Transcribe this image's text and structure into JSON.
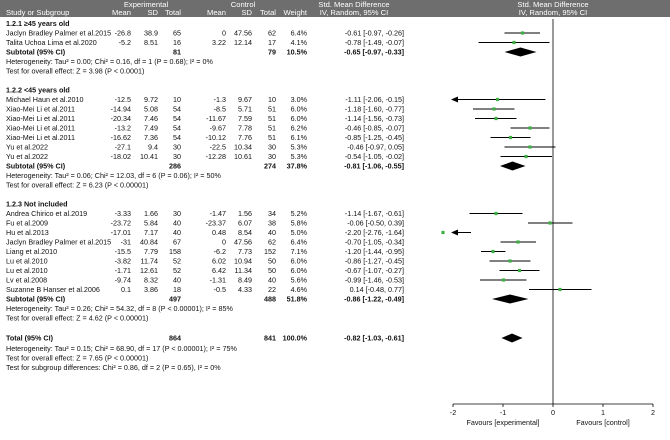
{
  "chart_data": {
    "type": "forest",
    "headers": {
      "study": "Study or Subgroup",
      "experimental": "Experimental",
      "control": "Control",
      "mean": "Mean",
      "sd": "SD",
      "total": "Total",
      "weight": "Weight",
      "smd_text": "Std. Mean Difference",
      "smd_text_sub": "IV, Random, 95% CI",
      "smd_plot": "Std. Mean Difference",
      "smd_plot_sub": "IV, Random, 95% CI"
    },
    "xlim": [
      -2,
      2
    ],
    "ticks": [
      "-2",
      "-1",
      "0",
      "1",
      "2"
    ],
    "favours_left": "Favours [experimental]",
    "favours_right": "Favours [control]",
    "subgroups": [
      {
        "title": "1.2.1 ≥45 years old",
        "studies": [
          {
            "name": "Jaclyn Bradley Palmer et al.2015",
            "e_mean": "-26.8",
            "e_sd": "38.9",
            "e_n": "65",
            "c_mean": "0",
            "c_sd": "47.56",
            "c_n": "62",
            "weight": "6.4%",
            "ci": "-0.61 [-0.97, -0.26]",
            "est": -0.61,
            "lo": -0.97,
            "hi": -0.26
          },
          {
            "name": "Talita Uchoa Lima et al.2020",
            "e_mean": "-5.2",
            "e_sd": "8.51",
            "e_n": "16",
            "c_mean": "3.22",
            "c_sd": "12.14",
            "c_n": "17",
            "weight": "4.1%",
            "ci": "-0.78 [-1.49, -0.07]",
            "est": -0.78,
            "lo": -1.49,
            "hi": -0.07
          }
        ],
        "subtotal": {
          "label": "Subtotal (95% CI)",
          "e_n": "81",
          "c_n": "79",
          "weight": "10.5%",
          "ci": "-0.65 [-0.97, -0.33]",
          "est": -0.65,
          "lo": -0.97,
          "hi": -0.33
        },
        "heterogeneity": "Heterogeneity: Tau² = 0.00; Chi² = 0.16, df = 1 (P = 0.68); I² = 0%",
        "overall": "Test for overall effect: Z = 3.98 (P < 0.0001)"
      },
      {
        "title": "1.2.2 <45 years old",
        "studies": [
          {
            "name": "Michael Haun et al.2010",
            "e_mean": "-12.5",
            "e_sd": "9.72",
            "e_n": "10",
            "c_mean": "-1.3",
            "c_sd": "9.67",
            "c_n": "10",
            "weight": "3.0%",
            "ci": "-1.11 [-2.06, -0.15]",
            "est": -1.11,
            "lo": -2.06,
            "hi": -0.15
          },
          {
            "name": "Xiao-Mei Li et al.2011",
            "e_mean": "-14.94",
            "e_sd": "5.08",
            "e_n": "54",
            "c_mean": "-8.5",
            "c_sd": "5.71",
            "c_n": "51",
            "weight": "6.0%",
            "ci": "-1.18 [-1.60, -0.77]",
            "est": -1.18,
            "lo": -1.6,
            "hi": -0.77
          },
          {
            "name": "Xiao-Mei Li et al.2011",
            "e_mean": "-20.34",
            "e_sd": "7.46",
            "e_n": "54",
            "c_mean": "-11.67",
            "c_sd": "7.59",
            "c_n": "51",
            "weight": "6.0%",
            "ci": "-1.14 [-1.56, -0.73]",
            "est": -1.14,
            "lo": -1.56,
            "hi": -0.73
          },
          {
            "name": "Xiao-Mei Li et al.2011",
            "e_mean": "-13.2",
            "e_sd": "7.49",
            "e_n": "54",
            "c_mean": "-9.67",
            "c_sd": "7.78",
            "c_n": "51",
            "weight": "6.2%",
            "ci": "-0.46 [-0.85, -0.07]",
            "est": -0.46,
            "lo": -0.85,
            "hi": -0.07
          },
          {
            "name": "Xiao-Mei Li et al.2011",
            "e_mean": "-16.62",
            "e_sd": "7.36",
            "e_n": "54",
            "c_mean": "-10.12",
            "c_sd": "7.76",
            "c_n": "51",
            "weight": "6.1%",
            "ci": "-0.85 [-1.25, -0.45]",
            "est": -0.85,
            "lo": -1.25,
            "hi": -0.45
          },
          {
            "name": "Yu et al.2022",
            "e_mean": "-27.1",
            "e_sd": "9.4",
            "e_n": "30",
            "c_mean": "-22.5",
            "c_sd": "10.34",
            "c_n": "30",
            "weight": "5.3%",
            "ci": "-0.46 [-0.97, 0.05]",
            "est": -0.46,
            "lo": -0.97,
            "hi": 0.05
          },
          {
            "name": "Yu et al.2022",
            "e_mean": "-18.02",
            "e_sd": "10.41",
            "e_n": "30",
            "c_mean": "-12.28",
            "c_sd": "10.61",
            "c_n": "30",
            "weight": "5.3%",
            "ci": "-0.54 [-1.05, -0.02]",
            "est": -0.54,
            "lo": -1.05,
            "hi": -0.02
          }
        ],
        "subtotal": {
          "label": "Subtotal (95% CI)",
          "e_n": "286",
          "c_n": "274",
          "weight": "37.8%",
          "ci": "-0.81 [-1.06, -0.55]",
          "est": -0.81,
          "lo": -1.06,
          "hi": -0.55
        },
        "heterogeneity": "Heterogeneity: Tau² = 0.06; Chi² = 12.03, df = 6 (P = 0.06); I² = 50%",
        "overall": "Test for overall effect: Z = 6.23 (P < 0.00001)"
      },
      {
        "title": "1.2.3 Not included",
        "studies": [
          {
            "name": "Andrea Chirico et al.2019",
            "e_mean": "-3.33",
            "e_sd": "1.66",
            "e_n": "30",
            "c_mean": "-1.47",
            "c_sd": "1.56",
            "c_n": "34",
            "weight": "5.2%",
            "ci": "-1.14 [-1.67, -0.61]",
            "est": -1.14,
            "lo": -1.67,
            "hi": -0.61
          },
          {
            "name": "Fu et al.2009",
            "e_mean": "-23.72",
            "e_sd": "5.84",
            "e_n": "40",
            "c_mean": "-23.37",
            "c_sd": "6.07",
            "c_n": "38",
            "weight": "5.8%",
            "ci": "-0.06 [-0.50, 0.39]",
            "est": -0.06,
            "lo": -0.5,
            "hi": 0.39
          },
          {
            "name": "Hu et al.2013",
            "e_mean": "-17.01",
            "e_sd": "7.17",
            "e_n": "40",
            "c_mean": "0.48",
            "c_sd": "8.54",
            "c_n": "40",
            "weight": "5.0%",
            "ci": "-2.20 [-2.76, -1.64]",
            "est": -2.2,
            "lo": -2.76,
            "hi": -1.64
          },
          {
            "name": "Jaclyn Bradley Palmer et al.2015",
            "e_mean": "-31",
            "e_sd": "40.84",
            "e_n": "67",
            "c_mean": "0",
            "c_sd": "47.56",
            "c_n": "62",
            "weight": "6.4%",
            "ci": "-0.70 [-1.05, -0.34]",
            "est": -0.7,
            "lo": -1.05,
            "hi": -0.34
          },
          {
            "name": "Liang et al.2010",
            "e_mean": "-15.5",
            "e_sd": "7.79",
            "e_n": "158",
            "c_mean": "-6.2",
            "c_sd": "7.73",
            "c_n": "152",
            "weight": "7.1%",
            "ci": "-1.20 [-1.44, -0.95]",
            "est": -1.2,
            "lo": -1.44,
            "hi": -0.95
          },
          {
            "name": "Lu et al.2010",
            "e_mean": "-3.82",
            "e_sd": "11.74",
            "e_n": "52",
            "c_mean": "6.02",
            "c_sd": "10.94",
            "c_n": "50",
            "weight": "6.0%",
            "ci": "-0.86 [-1.27, -0.45]",
            "est": -0.86,
            "lo": -1.27,
            "hi": -0.45
          },
          {
            "name": "Lu et al.2010",
            "e_mean": "-1.71",
            "e_sd": "12.61",
            "e_n": "52",
            "c_mean": "6.42",
            "c_sd": "11.34",
            "c_n": "50",
            "weight": "6.0%",
            "ci": "-0.67 [-1.07, -0.27]",
            "est": -0.67,
            "lo": -1.07,
            "hi": -0.27
          },
          {
            "name": "Lv et al.2008",
            "e_mean": "-9.74",
            "e_sd": "8.32",
            "e_n": "40",
            "c_mean": "-1.31",
            "c_sd": "8.49",
            "c_n": "40",
            "weight": "5.6%",
            "ci": "-0.99 [-1.46, -0.53]",
            "est": -0.99,
            "lo": -1.46,
            "hi": -0.53
          },
          {
            "name": "Suzanne B Hanser et al.2006",
            "e_mean": "0.1",
            "e_sd": "3.86",
            "e_n": "18",
            "c_mean": "-0.5",
            "c_sd": "4.33",
            "c_n": "22",
            "weight": "4.6%",
            "ci": "0.14 [-0.48, 0.77]",
            "est": 0.14,
            "lo": -0.48,
            "hi": 0.77
          }
        ],
        "subtotal": {
          "label": "Subtotal (95% CI)",
          "e_n": "497",
          "c_n": "488",
          "weight": "51.8%",
          "ci": "-0.86 [-1.22, -0.49]",
          "est": -0.86,
          "lo": -1.22,
          "hi": -0.49
        },
        "heterogeneity": "Heterogeneity: Tau² = 0.26; Chi² = 54.32, df = 8 (P < 0.00001); I² = 85%",
        "overall": "Test for overall effect: Z = 4.62 (P < 0.00001)"
      }
    ],
    "total": {
      "label": "Total (95% CI)",
      "e_n": "864",
      "c_n": "841",
      "weight": "100.0%",
      "ci": "-0.82 [-1.03, -0.61]",
      "est": -0.82,
      "lo": -1.03,
      "hi": -0.61
    },
    "footer": [
      "Heterogeneity: Tau² = 0.15; Chi² = 68.90, df = 17 (P < 0.00001); I² = 75%",
      "Test for overall effect: Z = 7.65 (P < 0.00001)",
      "Test for subgroup differences: Chi² = 0.86, df = 2 (P = 0.65), I² = 0%"
    ],
    "colors": {
      "header_bg": "#6e6e6e",
      "marker": "#3cb043",
      "ci_line": "#000000",
      "diamond": "#000000"
    }
  }
}
